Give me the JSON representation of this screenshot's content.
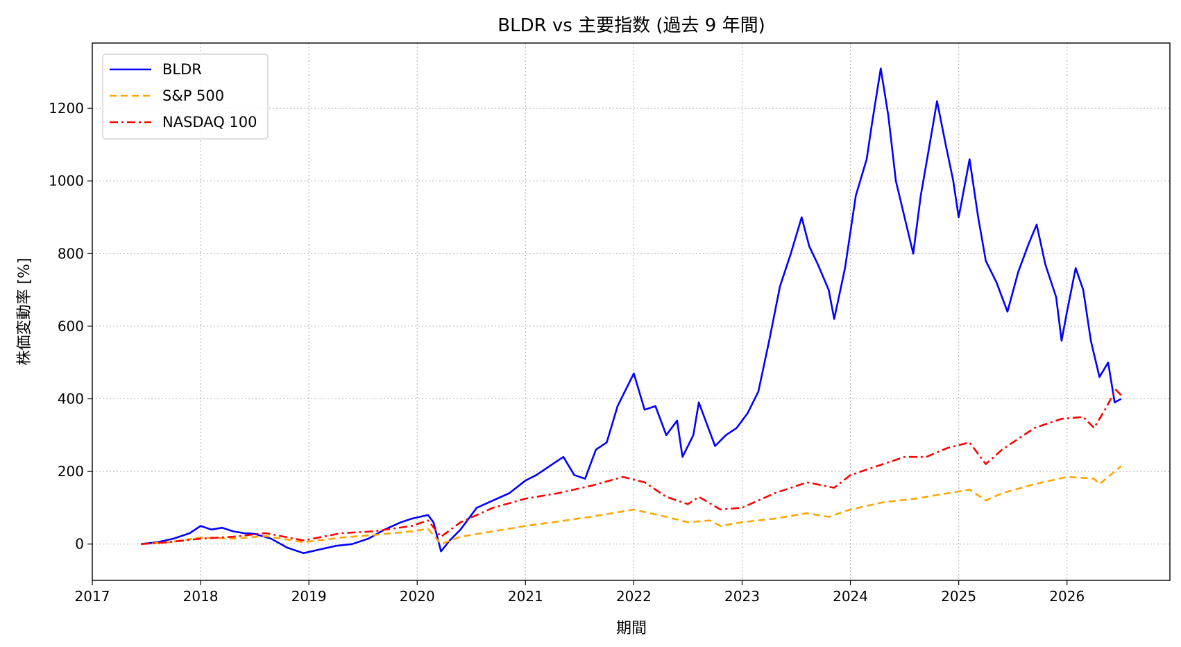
{
  "chart_data": {
    "type": "line",
    "title": "BLDR vs 主要指数 (過去 9 年間)",
    "xlabel": "期間",
    "ylabel": "株価変動率 [%]",
    "xlim": [
      2017.0,
      2026.95
    ],
    "ylim": [
      -100,
      1380
    ],
    "x_ticks": [
      2017,
      2018,
      2019,
      2020,
      2021,
      2022,
      2023,
      2024,
      2025,
      2026
    ],
    "y_ticks": [
      0,
      200,
      400,
      600,
      800,
      1000,
      1200
    ],
    "grid": true,
    "legend": "top-left",
    "series": [
      {
        "name": "BLDR",
        "color": "#0000ff",
        "style": "solid",
        "points": [
          [
            2017.45,
            0
          ],
          [
            2017.6,
            5
          ],
          [
            2017.75,
            15
          ],
          [
            2017.9,
            30
          ],
          [
            2018.0,
            50
          ],
          [
            2018.1,
            40
          ],
          [
            2018.2,
            45
          ],
          [
            2018.3,
            35
          ],
          [
            2018.4,
            30
          ],
          [
            2018.5,
            28
          ],
          [
            2018.65,
            15
          ],
          [
            2018.8,
            -10
          ],
          [
            2018.95,
            -25
          ],
          [
            2019.1,
            -15
          ],
          [
            2019.25,
            -5
          ],
          [
            2019.4,
            0
          ],
          [
            2019.55,
            15
          ],
          [
            2019.7,
            40
          ],
          [
            2019.85,
            60
          ],
          [
            2019.95,
            70
          ],
          [
            2020.1,
            80
          ],
          [
            2020.15,
            60
          ],
          [
            2020.22,
            -20
          ],
          [
            2020.3,
            10
          ],
          [
            2020.4,
            40
          ],
          [
            2020.55,
            100
          ],
          [
            2020.7,
            120
          ],
          [
            2020.85,
            140
          ],
          [
            2021.0,
            175
          ],
          [
            2021.1,
            190
          ],
          [
            2021.25,
            220
          ],
          [
            2021.35,
            240
          ],
          [
            2021.45,
            190
          ],
          [
            2021.55,
            180
          ],
          [
            2021.65,
            260
          ],
          [
            2021.75,
            280
          ],
          [
            2021.85,
            380
          ],
          [
            2022.0,
            470
          ],
          [
            2022.1,
            370
          ],
          [
            2022.2,
            380
          ],
          [
            2022.3,
            300
          ],
          [
            2022.4,
            340
          ],
          [
            2022.45,
            240
          ],
          [
            2022.55,
            300
          ],
          [
            2022.6,
            390
          ],
          [
            2022.7,
            310
          ],
          [
            2022.75,
            270
          ],
          [
            2022.85,
            300
          ],
          [
            2022.95,
            320
          ],
          [
            2023.05,
            360
          ],
          [
            2023.15,
            420
          ],
          [
            2023.25,
            560
          ],
          [
            2023.35,
            710
          ],
          [
            2023.45,
            800
          ],
          [
            2023.55,
            900
          ],
          [
            2023.62,
            820
          ],
          [
            2023.7,
            770
          ],
          [
            2023.8,
            700
          ],
          [
            2023.85,
            620
          ],
          [
            2023.95,
            760
          ],
          [
            2024.05,
            960
          ],
          [
            2024.15,
            1060
          ],
          [
            2024.2,
            1160
          ],
          [
            2024.28,
            1310
          ],
          [
            2024.35,
            1180
          ],
          [
            2024.42,
            1000
          ],
          [
            2024.5,
            900
          ],
          [
            2024.58,
            800
          ],
          [
            2024.65,
            960
          ],
          [
            2024.72,
            1080
          ],
          [
            2024.8,
            1220
          ],
          [
            2024.88,
            1100
          ],
          [
            2024.95,
            1000
          ],
          [
            2025.0,
            900
          ],
          [
            2025.1,
            1060
          ],
          [
            2025.18,
            900
          ],
          [
            2025.25,
            780
          ],
          [
            2025.35,
            720
          ],
          [
            2025.45,
            640
          ],
          [
            2025.55,
            750
          ],
          [
            2025.65,
            830
          ],
          [
            2025.72,
            880
          ],
          [
            2025.8,
            770
          ],
          [
            2025.9,
            680
          ],
          [
            2025.95,
            560
          ],
          [
            2026.0,
            640
          ],
          [
            2026.08,
            760
          ],
          [
            2026.15,
            700
          ],
          [
            2026.22,
            560
          ],
          [
            2026.3,
            460
          ],
          [
            2026.38,
            500
          ],
          [
            2026.44,
            390
          ],
          [
            2026.5,
            400
          ]
        ]
      },
      {
        "name": "S&P 500",
        "color": "#ffa500",
        "style": "dashed",
        "points": [
          [
            2017.45,
            0
          ],
          [
            2017.7,
            5
          ],
          [
            2018.0,
            18
          ],
          [
            2018.3,
            15
          ],
          [
            2018.6,
            22
          ],
          [
            2018.95,
            5
          ],
          [
            2019.3,
            18
          ],
          [
            2019.6,
            25
          ],
          [
            2019.95,
            35
          ],
          [
            2020.1,
            42
          ],
          [
            2020.22,
            0
          ],
          [
            2020.4,
            20
          ],
          [
            2020.7,
            35
          ],
          [
            2021.0,
            50
          ],
          [
            2021.3,
            62
          ],
          [
            2021.6,
            75
          ],
          [
            2022.0,
            95
          ],
          [
            2022.3,
            75
          ],
          [
            2022.5,
            60
          ],
          [
            2022.7,
            65
          ],
          [
            2022.8,
            50
          ],
          [
            2023.0,
            60
          ],
          [
            2023.3,
            70
          ],
          [
            2023.6,
            85
          ],
          [
            2023.8,
            75
          ],
          [
            2024.0,
            95
          ],
          [
            2024.3,
            115
          ],
          [
            2024.6,
            125
          ],
          [
            2024.9,
            140
          ],
          [
            2025.1,
            150
          ],
          [
            2025.25,
            120
          ],
          [
            2025.4,
            140
          ],
          [
            2025.7,
            165
          ],
          [
            2026.0,
            185
          ],
          [
            2026.25,
            180
          ],
          [
            2026.3,
            165
          ],
          [
            2026.5,
            215
          ]
        ]
      },
      {
        "name": "NASDAQ 100",
        "color": "#ff0000",
        "style": "dashdot",
        "points": [
          [
            2017.45,
            0
          ],
          [
            2017.7,
            5
          ],
          [
            2018.0,
            15
          ],
          [
            2018.3,
            20
          ],
          [
            2018.6,
            30
          ],
          [
            2018.95,
            10
          ],
          [
            2019.3,
            30
          ],
          [
            2019.6,
            35
          ],
          [
            2019.95,
            50
          ],
          [
            2020.1,
            65
          ],
          [
            2020.22,
            20
          ],
          [
            2020.4,
            60
          ],
          [
            2020.7,
            100
          ],
          [
            2021.0,
            125
          ],
          [
            2021.3,
            140
          ],
          [
            2021.6,
            160
          ],
          [
            2021.9,
            185
          ],
          [
            2022.1,
            170
          ],
          [
            2022.3,
            130
          ],
          [
            2022.5,
            110
          ],
          [
            2022.6,
            130
          ],
          [
            2022.8,
            95
          ],
          [
            2023.0,
            100
          ],
          [
            2023.3,
            140
          ],
          [
            2023.6,
            170
          ],
          [
            2023.85,
            155
          ],
          [
            2024.0,
            190
          ],
          [
            2024.3,
            220
          ],
          [
            2024.5,
            240
          ],
          [
            2024.7,
            240
          ],
          [
            2024.9,
            265
          ],
          [
            2025.1,
            280
          ],
          [
            2025.25,
            220
          ],
          [
            2025.4,
            260
          ],
          [
            2025.7,
            320
          ],
          [
            2025.95,
            345
          ],
          [
            2026.15,
            350
          ],
          [
            2026.25,
            320
          ],
          [
            2026.35,
            370
          ],
          [
            2026.45,
            425
          ],
          [
            2026.5,
            410
          ]
        ]
      }
    ]
  }
}
